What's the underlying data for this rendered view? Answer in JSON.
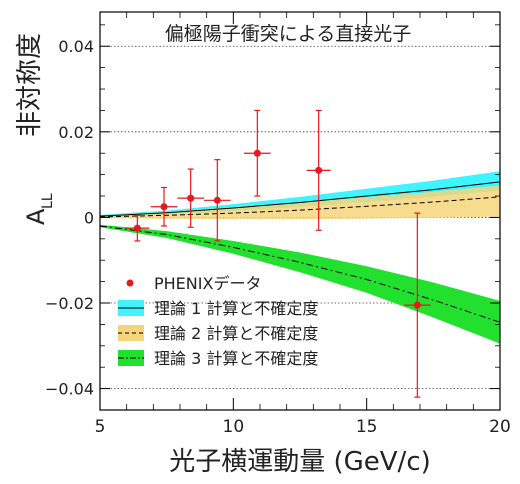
{
  "chart_data": {
    "type": "scatter",
    "title": "偏極陽子衝突による直接光子",
    "xlabel": "光子横運動量 (GeV/c)",
    "ylabel_main": "非対称度",
    "ylabel_symbol": "A",
    "ylabel_sub": "LL",
    "xlim": [
      5,
      20
    ],
    "ylim": [
      -0.045,
      0.048
    ],
    "x_ticks": [
      5,
      10,
      15,
      20
    ],
    "x_tick_labels": [
      "5",
      "10",
      "15",
      "20"
    ],
    "y_ticks": [
      -0.04,
      -0.02,
      0,
      0.02,
      0.04
    ],
    "y_tick_labels": [
      "−0.04",
      "−0.02",
      "0",
      "0.02",
      "0.04"
    ],
    "grid": "dotted horizontal lines at y ticks",
    "legend_position": "bottom-left",
    "legend": [
      {
        "label": "PHENIXデータ",
        "kind": "point",
        "color": "#e41a1c"
      },
      {
        "label": "理論 1 計算と不確定度",
        "kind": "band",
        "fill": "#3ff3ff",
        "line": "#000000",
        "dash": "solid"
      },
      {
        "label": "理論 2 計算と不確定度",
        "kind": "band",
        "fill": "#f6d57a",
        "line": "#000000",
        "dash": "dashed"
      },
      {
        "label": "理論 3 計算と不確定度",
        "kind": "band",
        "fill": "#22e02e",
        "line": "#000000",
        "dash": "dashdot"
      }
    ],
    "data_points": {
      "name": "PHENIXデータ",
      "color": "#e41a1c",
      "x": [
        6.4,
        7.4,
        8.4,
        9.4,
        10.9,
        13.2,
        16.9
      ],
      "y": [
        -0.0025,
        0.0025,
        0.0045,
        0.004,
        0.015,
        0.011,
        -0.0205
      ],
      "y_err": [
        0.003,
        0.0045,
        0.0068,
        0.0095,
        0.01,
        0.014,
        0.0215
      ],
      "x_err": [
        0.45,
        0.5,
        0.5,
        0.5,
        0.5,
        0.45,
        0.5
      ]
    },
    "theory_curves": [
      {
        "name": "理論 1",
        "fill": "#3ff3ff",
        "x": [
          5,
          7.5,
          10,
          12.5,
          15,
          17.5,
          20
        ],
        "central": [
          0.0003,
          0.0011,
          0.0022,
          0.0035,
          0.005,
          0.0065,
          0.0083
        ],
        "upper": [
          0.0006,
          0.0016,
          0.0031,
          0.0048,
          0.0067,
          0.0086,
          0.0108
        ],
        "lower": [
          0.0,
          0.0007,
          0.0015,
          0.0025,
          0.0036,
          0.0049,
          0.0063
        ]
      },
      {
        "name": "理論 2",
        "fill": "#f6d57a",
        "x": [
          5,
          7.5,
          10,
          12.5,
          15,
          17.5,
          20
        ],
        "central": [
          0.0001,
          0.0005,
          0.001,
          0.0017,
          0.0026,
          0.0036,
          0.0048
        ],
        "upper": [
          0.0004,
          0.0013,
          0.0024,
          0.0035,
          0.0047,
          0.006,
          0.0075
        ],
        "lower": [
          -0.0002,
          -0.0003,
          -0.0004,
          -0.0004,
          -0.0003,
          -0.0001,
          0.0002
        ]
      },
      {
        "name": "理論 3",
        "fill": "#22e02e",
        "x": [
          5,
          7.5,
          10,
          12.5,
          15,
          17.5,
          20
        ],
        "central": [
          -0.002,
          -0.004,
          -0.007,
          -0.0105,
          -0.0145,
          -0.0193,
          -0.0245
        ],
        "upper": [
          -0.0017,
          -0.0032,
          -0.0055,
          -0.0082,
          -0.0114,
          -0.0152,
          -0.0195
        ],
        "lower": [
          -0.0023,
          -0.0048,
          -0.0085,
          -0.0128,
          -0.0176,
          -0.0234,
          -0.0295
        ]
      }
    ]
  }
}
